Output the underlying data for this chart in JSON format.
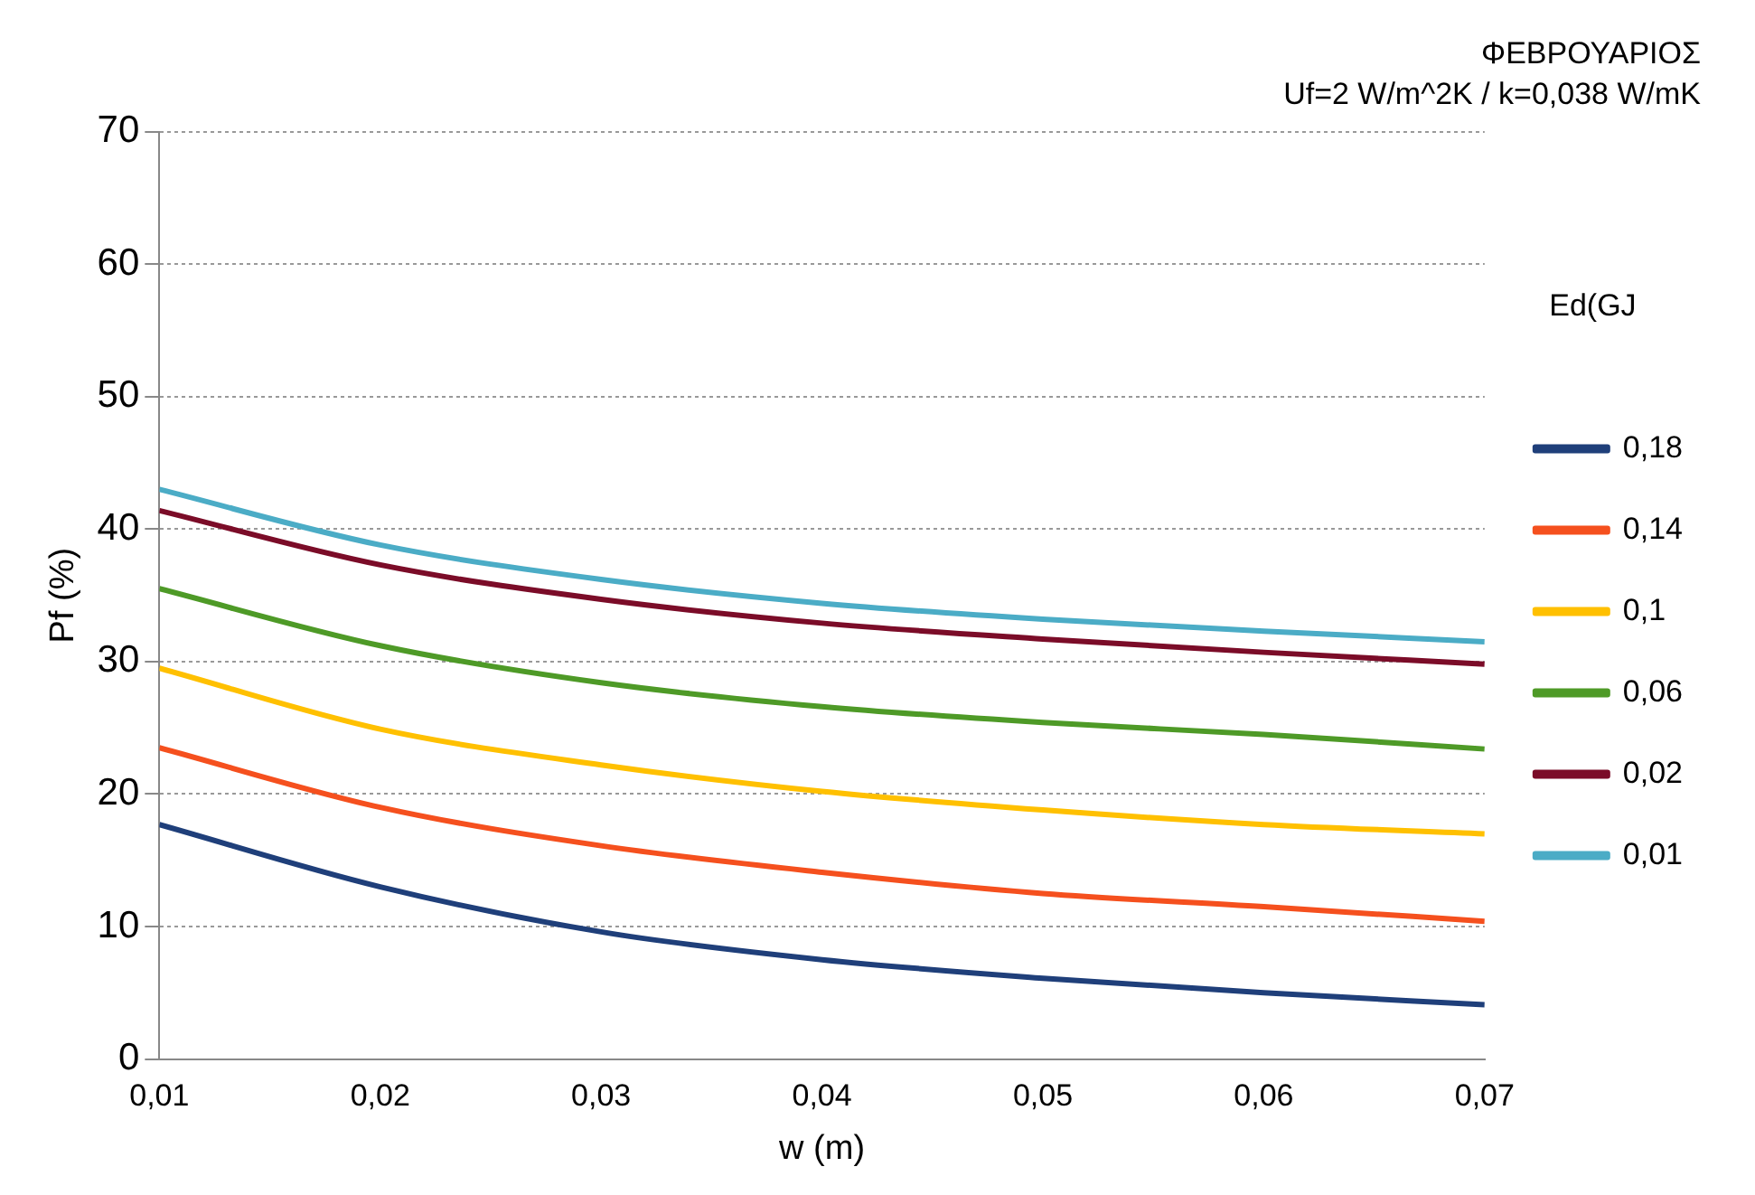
{
  "chart_data": {
    "type": "line",
    "title": "ΦΕΒΡΟΥΑΡΙΟΣ",
    "subtitle": "Uf=2 W/m^2K / k=0,038 W/mK",
    "xlabel": "w (m)",
    "ylabel": "Pf (%)",
    "legend_title": "Ed(GJ",
    "x": [
      0.01,
      0.02,
      0.03,
      0.04,
      0.05,
      0.06,
      0.07
    ],
    "series": [
      {
        "name": "0,18",
        "color": "#1f3f7a",
        "values": [
          17.7,
          13.0,
          9.6,
          7.5,
          6.1,
          5.0,
          4.1
        ]
      },
      {
        "name": "0,14",
        "color": "#f5501e",
        "values": [
          23.5,
          19.0,
          16.1,
          14.1,
          12.5,
          11.5,
          10.4
        ]
      },
      {
        "name": "0,1",
        "color": "#ffc000",
        "values": [
          29.5,
          24.9,
          22.2,
          20.2,
          18.8,
          17.7,
          17.0
        ]
      },
      {
        "name": "0,06",
        "color": "#4e9a27",
        "values": [
          35.5,
          31.2,
          28.4,
          26.6,
          25.4,
          24.5,
          23.4
        ]
      },
      {
        "name": "0,02",
        "color": "#7b0c28",
        "values": [
          41.4,
          37.3,
          34.7,
          32.9,
          31.7,
          30.7,
          29.8
        ]
      },
      {
        "name": "0,01",
        "color": "#4bacc6",
        "values": [
          43.0,
          38.8,
          36.2,
          34.4,
          33.2,
          32.3,
          31.5
        ]
      }
    ],
    "xlim": [
      0.01,
      0.07
    ],
    "xticks": [
      {
        "value": 0.01,
        "label": "0,01"
      },
      {
        "value": 0.02,
        "label": "0,02"
      },
      {
        "value": 0.03,
        "label": "0,03"
      },
      {
        "value": 0.04,
        "label": "0,04"
      },
      {
        "value": 0.05,
        "label": "0,05"
      },
      {
        "value": 0.06,
        "label": "0,06"
      },
      {
        "value": 0.07,
        "label": "0,07"
      }
    ],
    "ylim": [
      0,
      70
    ],
    "yticks": [
      0,
      10,
      20,
      30,
      40,
      50,
      60,
      70
    ],
    "grid": "y",
    "legend": "right",
    "marker": "none",
    "line_style": "solid"
  }
}
